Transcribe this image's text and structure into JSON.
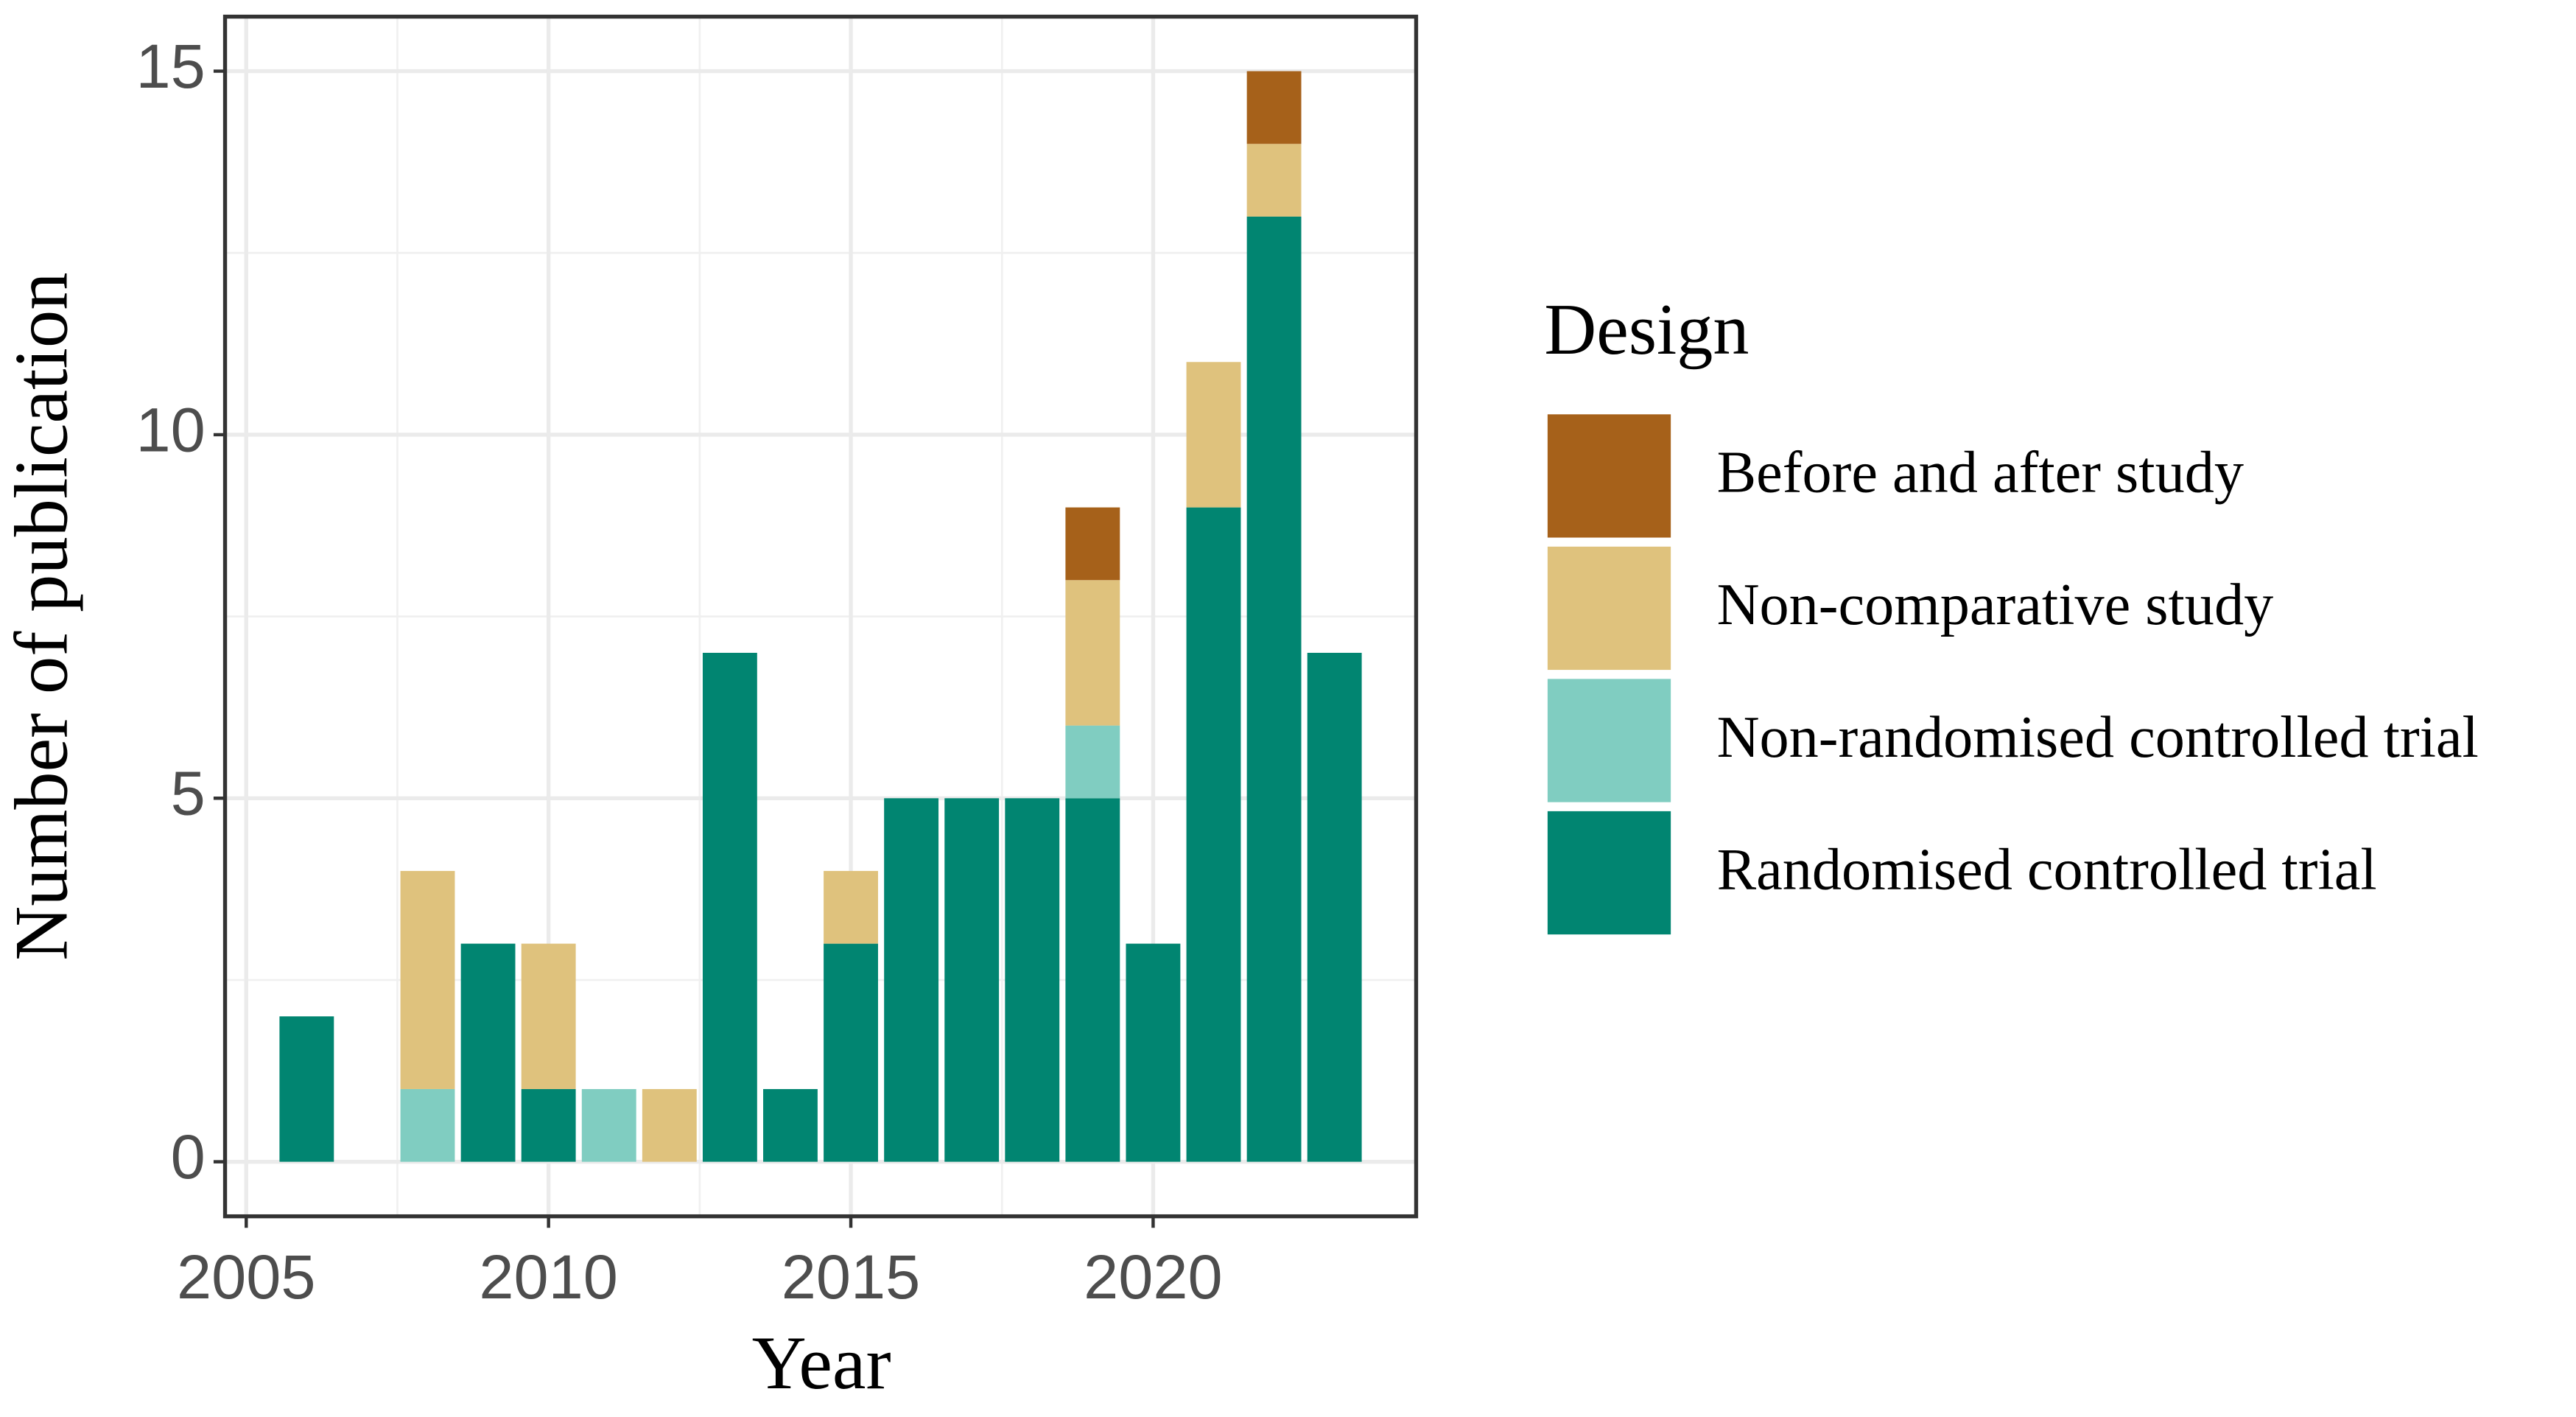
{
  "chart_data": {
    "type": "stacked-bar",
    "x_label": "Year",
    "y_label": "Number of publication",
    "legend_title": "Design",
    "legend_position": "right",
    "grid": true,
    "x": [
      2006,
      2007,
      2008,
      2009,
      2010,
      2011,
      2012,
      2013,
      2014,
      2015,
      2016,
      2017,
      2018,
      2019,
      2020,
      2021,
      2022,
      2023
    ],
    "xlim": [
      2004.65,
      2024.35
    ],
    "xticks": [
      2005,
      2010,
      2015,
      2020
    ],
    "ylim": [
      -0.75,
      15.75
    ],
    "yticks": [
      0,
      5,
      10,
      15
    ],
    "series": [
      {
        "name": "Before and after study",
        "color": "#a6611a",
        "values": [
          0,
          0,
          0,
          0,
          0,
          0,
          0,
          0,
          0,
          0,
          0,
          0,
          0,
          1,
          0,
          0,
          1,
          0
        ]
      },
      {
        "name": "Non-comparative study",
        "color": "#dfc27d",
        "values": [
          0,
          0,
          3,
          0,
          2,
          0,
          1,
          0,
          0,
          1,
          0,
          0,
          0,
          2,
          0,
          2,
          1,
          0
        ]
      },
      {
        "name": "Non-randomised controlled trial",
        "color": "#80cdc1",
        "values": [
          0,
          0,
          1,
          0,
          0,
          1,
          0,
          0,
          0,
          0,
          0,
          0,
          0,
          1,
          0,
          0,
          0,
          0
        ]
      },
      {
        "name": "Randomised controlled trial",
        "color": "#018571",
        "values": [
          2,
          0,
          0,
          3,
          1,
          0,
          0,
          7,
          1,
          3,
          5,
          5,
          5,
          5,
          3,
          9,
          13,
          7
        ]
      }
    ]
  }
}
